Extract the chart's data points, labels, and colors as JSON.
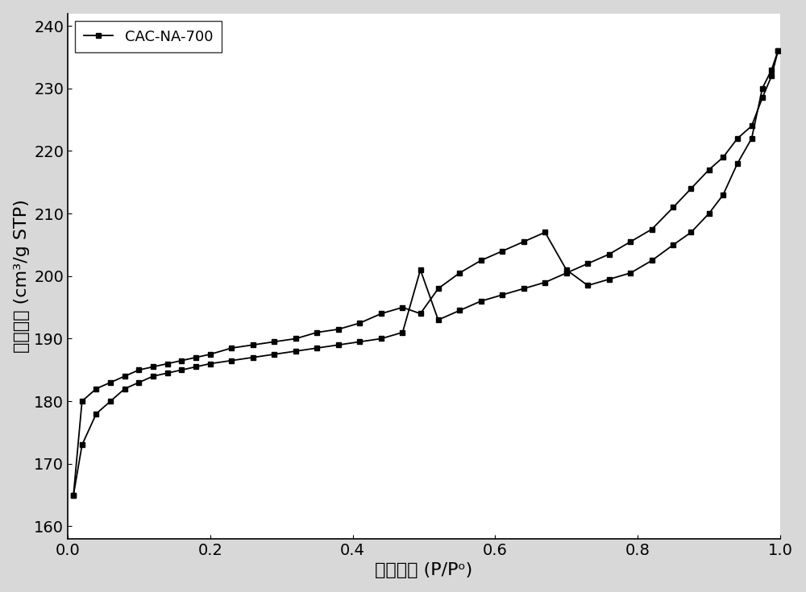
{
  "adsorption_x": [
    0.008,
    0.02,
    0.04,
    0.06,
    0.08,
    0.1,
    0.12,
    0.14,
    0.16,
    0.18,
    0.2,
    0.23,
    0.26,
    0.29,
    0.32,
    0.35,
    0.38,
    0.41,
    0.44,
    0.47,
    0.495,
    0.52,
    0.55,
    0.58,
    0.61,
    0.64,
    0.67,
    0.7,
    0.73,
    0.76,
    0.79,
    0.82,
    0.85,
    0.875,
    0.9,
    0.92,
    0.94,
    0.96,
    0.975,
    0.988,
    0.997
  ],
  "adsorption_y": [
    165,
    173,
    178,
    180,
    182,
    183,
    184,
    184.5,
    185,
    185.5,
    186,
    186.5,
    187,
    187.5,
    188,
    188.5,
    189,
    189.5,
    190,
    191,
    201,
    193,
    194.5,
    196,
    197,
    198,
    199,
    200.5,
    202,
    203.5,
    205.5,
    207.5,
    211,
    214,
    217,
    219,
    222,
    224,
    228.5,
    232,
    236
  ],
  "desorption_x": [
    0.997,
    0.988,
    0.975,
    0.96,
    0.94,
    0.92,
    0.9,
    0.875,
    0.85,
    0.82,
    0.79,
    0.76,
    0.73,
    0.7,
    0.67,
    0.64,
    0.61,
    0.58,
    0.55,
    0.52,
    0.495,
    0.47,
    0.44,
    0.41,
    0.38,
    0.35,
    0.32,
    0.29,
    0.26,
    0.23,
    0.2,
    0.18,
    0.16,
    0.14,
    0.12,
    0.1,
    0.08,
    0.06,
    0.04,
    0.02,
    0.008
  ],
  "desorption_y": [
    236,
    233,
    230,
    222,
    218,
    213,
    210,
    207,
    205,
    202.5,
    200.5,
    199.5,
    198.5,
    201,
    207,
    205.5,
    204,
    202.5,
    200.5,
    198,
    194,
    195,
    194,
    192.5,
    191.5,
    191,
    190,
    189.5,
    189,
    188.5,
    187.5,
    187,
    186.5,
    186,
    185.5,
    185,
    184,
    183,
    182,
    180,
    165
  ],
  "xlabel": "相对压力 (P/Pᵒ)",
  "ylabel": "吸附数量 (cm³/g STP)",
  "legend_label": "CAC-NA-700",
  "xlim": [
    0.0,
    1.0
  ],
  "ylim": [
    158,
    242
  ],
  "yticks": [
    160,
    170,
    180,
    190,
    200,
    210,
    220,
    230,
    240
  ],
  "xticks": [
    0.0,
    0.2,
    0.4,
    0.6,
    0.8,
    1.0
  ],
  "line_color": "#000000",
  "marker": "s",
  "markersize": 5,
  "linewidth": 1.3,
  "fig_background_color": "#d8d8d8",
  "plot_background": "#ffffff"
}
